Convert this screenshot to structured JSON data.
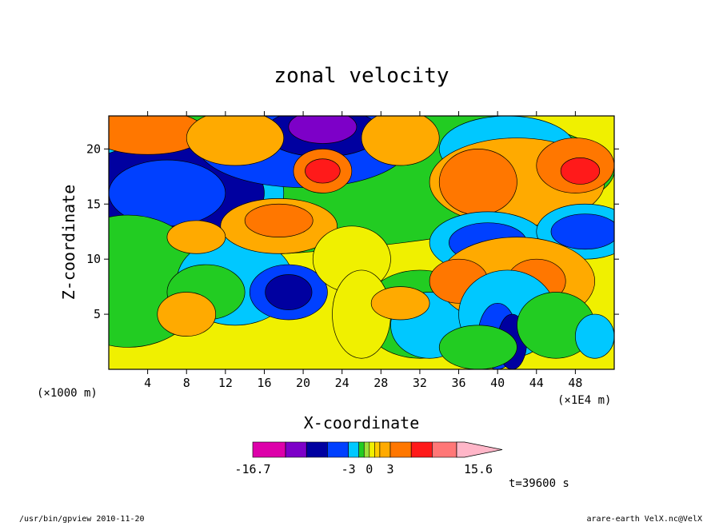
{
  "chart_data": {
    "type": "heatmap",
    "title": "zonal velocity",
    "xlabel": "X-coordinate",
    "ylabel": "Z-coordinate",
    "x_unit_left": "(×1000 m)",
    "x_unit_right": "(×1E4 m)",
    "xlim": [
      0,
      52
    ],
    "ylim": [
      0,
      23
    ],
    "x_ticks": [
      "4",
      "8",
      "12",
      "16",
      "20",
      "24",
      "28",
      "32",
      "36",
      "40",
      "44",
      "48"
    ],
    "y_ticks": [
      "5",
      "10",
      "15",
      "20"
    ],
    "colorbar": {
      "labels": [
        "-16.7",
        "-3",
        "0",
        "3",
        "15.6"
      ],
      "segments": [
        {
          "color": "#dd00aa",
          "from": -16.7,
          "to": -12
        },
        {
          "color": "#7d00c8",
          "from": -12,
          "to": -9
        },
        {
          "color": "#0000a0",
          "from": -9,
          "to": -6
        },
        {
          "color": "#0040ff",
          "from": -6,
          "to": -3
        },
        {
          "color": "#00c8ff",
          "from": -3,
          "to": -1.5
        },
        {
          "color": "#22cc22",
          "from": -1.5,
          "to": -0.75
        },
        {
          "color": "#9ee03a",
          "from": -0.75,
          "to": 0
        },
        {
          "color": "#f0f000",
          "from": 0,
          "to": 0.75
        },
        {
          "color": "#ffcc00",
          "from": 0.75,
          "to": 1.5
        },
        {
          "color": "#ffaa00",
          "from": 1.5,
          "to": 3
        },
        {
          "color": "#ff7700",
          "from": 3,
          "to": 6
        },
        {
          "color": "#ff1a1a",
          "from": 6,
          "to": 9
        },
        {
          "color": "#ff7777",
          "from": 9,
          "to": 12.5
        },
        {
          "color": "#ffb6c8",
          "from": 12.5,
          "to": 15.6
        }
      ]
    },
    "regions": [
      {
        "name": "upper-left negative jet",
        "x": 6,
        "z": 16,
        "value": -5
      },
      {
        "name": "top negative core",
        "x": 22,
        "z": 21.5,
        "value": -12
      },
      {
        "name": "positive core near x=22",
        "x": 22,
        "z": 18,
        "value": 7
      },
      {
        "name": "upper-right positive core",
        "x": 48,
        "z": 18,
        "value": 7
      },
      {
        "name": "mid-level blue patch",
        "x": 39,
        "z": 11.5,
        "value": -5
      },
      {
        "name": "right blue patch",
        "x": 49,
        "z": 12.5,
        "value": -5
      },
      {
        "name": "lower blue patch",
        "x": 18.5,
        "z": 7,
        "value": -4
      },
      {
        "name": "mountain wave region",
        "x": 40,
        "z": 4,
        "value": -6
      },
      {
        "name": "mid positive tongue",
        "x": 17.5,
        "z": 13,
        "value": 4
      }
    ],
    "grid": false,
    "legend": "colorbar-bottom"
  },
  "annotations": {
    "time": "t=39600 s",
    "footer_left": "/usr/bin/gpview   2010-11-20",
    "footer_right": "arare-earth_VelX.nc@VelX"
  }
}
